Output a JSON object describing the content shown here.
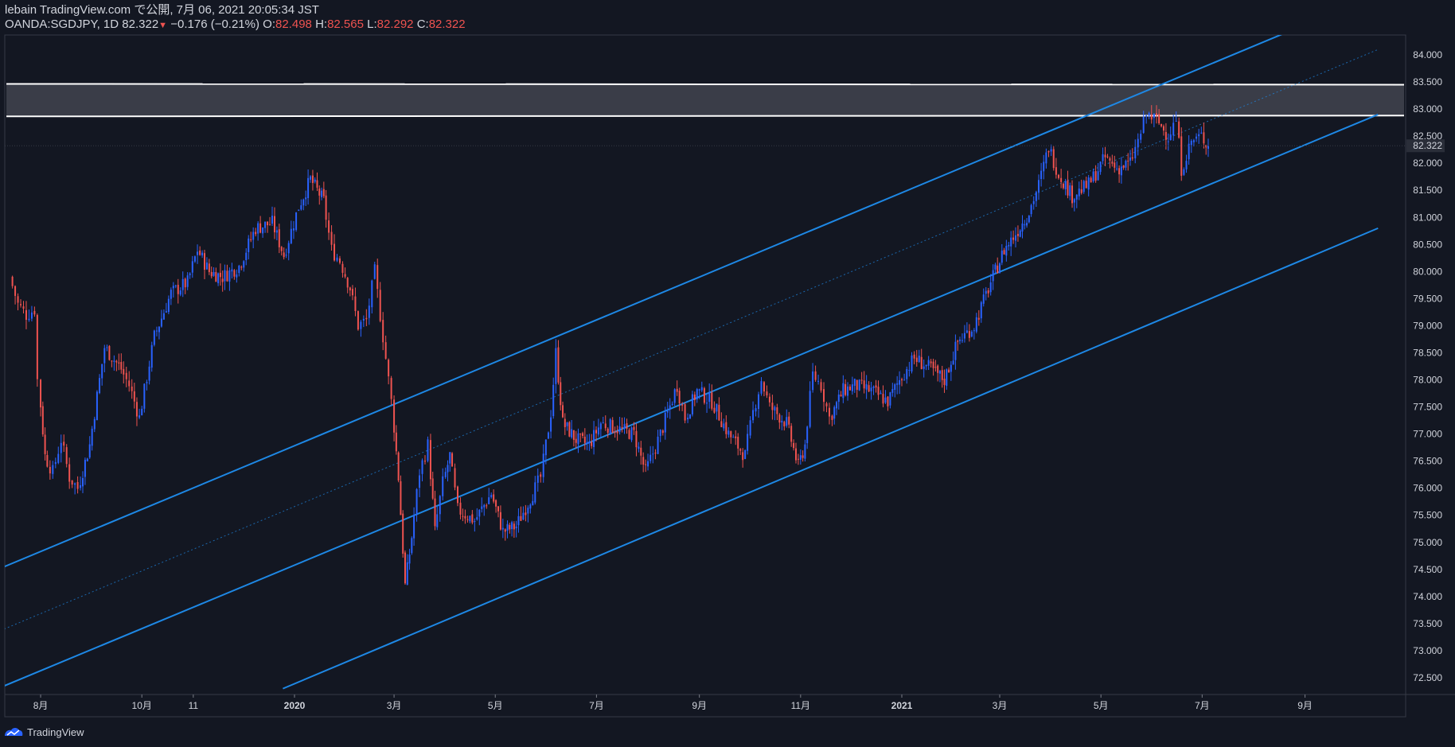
{
  "header": {
    "line1": "lebain TradingView.com で公開, 7月 06, 2021 20:05:34 JST",
    "symbol": "OANDA:SGDJPY, 1D",
    "last": "82.322",
    "change": "−0.176 (−0.21%)",
    "o_label": "O:",
    "o_val": "82.498",
    "h_label": "H:",
    "h_val": "82.565",
    "l_label": "L:",
    "l_val": "82.292",
    "c_label": "C:",
    "c_val": "82.322"
  },
  "footer": {
    "brand": "TradingView"
  },
  "colors": {
    "up": "#2962ff",
    "down": "#ef5350",
    "channel": "#1e88e5",
    "zone": "#ffffff",
    "bg": "#131722"
  },
  "chart_data": {
    "type": "candlestick",
    "symbol": "OANDA:SGDJPY",
    "interval": "1D",
    "ylim": [
      72.2,
      84.4
    ],
    "x_ticks": [
      "8月",
      "10月",
      "11",
      "2020",
      "3月",
      "5月",
      "7月",
      "9月",
      "11月",
      "2021",
      "3月",
      "5月",
      "7月",
      "9月"
    ],
    "y_ticks": [
      "84.000",
      "83.500",
      "83.000",
      "82.500",
      "82.000",
      "81.500",
      "81.000",
      "80.500",
      "80.000",
      "79.500",
      "79.000",
      "78.500",
      "78.000",
      "77.500",
      "77.000",
      "76.500",
      "76.000",
      "75.500",
      "75.000",
      "74.500",
      "74.000",
      "73.500",
      "73.000",
      "72.500"
    ],
    "last_price_label": "82.322",
    "series": [
      {
        "values": [
          {
            "t": "2019-07-15",
            "close": 79.9
          },
          {
            "t": "2019-07-20",
            "close": 79.4
          },
          {
            "t": "2019-07-25",
            "close": 79.2
          },
          {
            "t": "2019-07-30",
            "close": 79.3
          },
          {
            "t": "2019-08-01",
            "close": 78.0
          },
          {
            "t": "2019-08-05",
            "close": 76.6
          },
          {
            "t": "2019-08-10",
            "close": 76.3
          },
          {
            "t": "2019-08-15",
            "close": 76.9
          },
          {
            "t": "2019-08-20",
            "close": 76.2
          },
          {
            "t": "2019-08-25",
            "close": 76.0
          },
          {
            "t": "2019-09-01",
            "close": 76.8
          },
          {
            "t": "2019-09-10",
            "close": 78.6
          },
          {
            "t": "2019-09-20",
            "close": 78.2
          },
          {
            "t": "2019-09-25",
            "close": 77.9
          },
          {
            "t": "2019-10-01",
            "close": 77.3
          },
          {
            "t": "2019-10-10",
            "close": 78.8
          },
          {
            "t": "2019-10-20",
            "close": 79.6
          },
          {
            "t": "2019-10-30",
            "close": 79.8
          },
          {
            "t": "2019-11-05",
            "close": 80.4
          },
          {
            "t": "2019-11-12",
            "close": 80.0
          },
          {
            "t": "2019-11-20",
            "close": 79.9
          },
          {
            "t": "2019-11-30",
            "close": 80.1
          },
          {
            "t": "2019-12-10",
            "close": 80.8
          },
          {
            "t": "2019-12-20",
            "close": 80.9
          },
          {
            "t": "2019-12-27",
            "close": 80.3
          },
          {
            "t": "2020-01-05",
            "close": 81.2
          },
          {
            "t": "2020-01-12",
            "close": 81.7
          },
          {
            "t": "2020-01-20",
            "close": 81.3
          },
          {
            "t": "2020-01-25",
            "close": 80.4
          },
          {
            "t": "2020-01-30",
            "close": 80.2
          },
          {
            "t": "2020-02-05",
            "close": 79.7
          },
          {
            "t": "2020-02-10",
            "close": 79.0
          },
          {
            "t": "2020-02-15",
            "close": 79.1
          },
          {
            "t": "2020-02-20",
            "close": 80.0
          },
          {
            "t": "2020-02-25",
            "close": 78.8
          },
          {
            "t": "2020-03-01",
            "close": 77.6
          },
          {
            "t": "2020-03-05",
            "close": 76.2
          },
          {
            "t": "2020-03-09",
            "close": 74.2
          },
          {
            "t": "2020-03-13",
            "close": 75.1
          },
          {
            "t": "2020-03-18",
            "close": 76.3
          },
          {
            "t": "2020-03-23",
            "close": 76.8
          },
          {
            "t": "2020-03-27",
            "close": 75.2
          },
          {
            "t": "2020-04-01",
            "close": 76.1
          },
          {
            "t": "2020-04-05",
            "close": 76.6
          },
          {
            "t": "2020-04-10",
            "close": 75.6
          },
          {
            "t": "2020-04-20",
            "close": 75.4
          },
          {
            "t": "2020-04-30",
            "close": 75.9
          },
          {
            "t": "2020-05-07",
            "close": 75.2
          },
          {
            "t": "2020-05-15",
            "close": 75.3
          },
          {
            "t": "2020-05-25",
            "close": 75.9
          },
          {
            "t": "2020-05-30",
            "close": 76.2
          },
          {
            "t": "2020-06-05",
            "close": 77.4
          },
          {
            "t": "2020-06-08",
            "close": 78.5
          },
          {
            "t": "2020-06-12",
            "close": 77.2
          },
          {
            "t": "2020-06-20",
            "close": 76.9
          },
          {
            "t": "2020-06-28",
            "close": 76.8
          },
          {
            "t": "2020-07-05",
            "close": 77.2
          },
          {
            "t": "2020-07-15",
            "close": 77.1
          },
          {
            "t": "2020-07-25",
            "close": 77.0
          },
          {
            "t": "2020-08-01",
            "close": 76.3
          },
          {
            "t": "2020-08-10",
            "close": 77.0
          },
          {
            "t": "2020-08-20",
            "close": 77.9
          },
          {
            "t": "2020-08-25",
            "close": 77.3
          },
          {
            "t": "2020-09-01",
            "close": 77.8
          },
          {
            "t": "2020-09-10",
            "close": 77.6
          },
          {
            "t": "2020-09-20",
            "close": 77.0
          },
          {
            "t": "2020-09-30",
            "close": 76.6
          },
          {
            "t": "2020-10-05",
            "close": 77.4
          },
          {
            "t": "2020-10-10",
            "close": 78.0
          },
          {
            "t": "2020-10-15",
            "close": 77.5
          },
          {
            "t": "2020-10-25",
            "close": 77.2
          },
          {
            "t": "2020-11-01",
            "close": 76.4
          },
          {
            "t": "2020-11-05",
            "close": 76.8
          },
          {
            "t": "2020-11-10",
            "close": 78.1
          },
          {
            "t": "2020-11-15",
            "close": 77.9
          },
          {
            "t": "2020-11-20",
            "close": 77.3
          },
          {
            "t": "2020-11-28",
            "close": 77.8
          },
          {
            "t": "2020-12-05",
            "close": 77.9
          },
          {
            "t": "2020-12-15",
            "close": 77.8
          },
          {
            "t": "2020-12-25",
            "close": 77.6
          },
          {
            "t": "2021-01-01",
            "close": 78.0
          },
          {
            "t": "2021-01-10",
            "close": 78.4
          },
          {
            "t": "2021-01-20",
            "close": 78.2
          },
          {
            "t": "2021-01-28",
            "close": 78.0
          },
          {
            "t": "2021-02-05",
            "close": 78.7
          },
          {
            "t": "2021-02-15",
            "close": 79.0
          },
          {
            "t": "2021-02-25",
            "close": 79.8
          },
          {
            "t": "2021-03-05",
            "close": 80.4
          },
          {
            "t": "2021-03-12",
            "close": 80.7
          },
          {
            "t": "2021-03-20",
            "close": 81.1
          },
          {
            "t": "2021-03-26",
            "close": 81.6
          },
          {
            "t": "2021-04-01",
            "close": 82.3
          },
          {
            "t": "2021-04-07",
            "close": 81.8
          },
          {
            "t": "2021-04-15",
            "close": 81.4
          },
          {
            "t": "2021-04-25",
            "close": 81.6
          },
          {
            "t": "2021-05-05",
            "close": 82.1
          },
          {
            "t": "2021-05-12",
            "close": 81.9
          },
          {
            "t": "2021-05-20",
            "close": 82.0
          },
          {
            "t": "2021-05-25",
            "close": 82.4
          },
          {
            "t": "2021-05-30",
            "close": 82.9
          },
          {
            "t": "2021-06-05",
            "close": 82.8
          },
          {
            "t": "2021-06-12",
            "close": 82.5
          },
          {
            "t": "2021-06-17",
            "close": 82.8
          },
          {
            "t": "2021-06-20",
            "close": 81.9
          },
          {
            "t": "2021-06-26",
            "close": 82.4
          },
          {
            "t": "2021-07-02",
            "close": 82.5
          },
          {
            "t": "2021-07-06",
            "close": 82.322
          }
        ]
      }
    ],
    "zone": {
      "upper": 83.45,
      "lower": 82.88
    },
    "channel": [
      {
        "role": "upper",
        "from": {
          "t": "2019-07-10",
          "y": 74.55
        },
        "to": {
          "t": "2021-09-20",
          "y": 84.8
        }
      },
      {
        "role": "middle",
        "from": {
          "t": "2019-07-10",
          "y": 72.35
        },
        "to": {
          "t": "2021-10-15",
          "y": 82.9
        }
      },
      {
        "role": "lower",
        "from": {
          "t": "2019-12-25",
          "y": 72.3
        },
        "to": {
          "t": "2021-10-15",
          "y": 80.8
        }
      },
      {
        "role": "median-dotted",
        "from": {
          "t": "2019-07-10",
          "y": 73.4
        },
        "to": {
          "t": "2021-10-15",
          "y": 84.1
        }
      }
    ]
  }
}
